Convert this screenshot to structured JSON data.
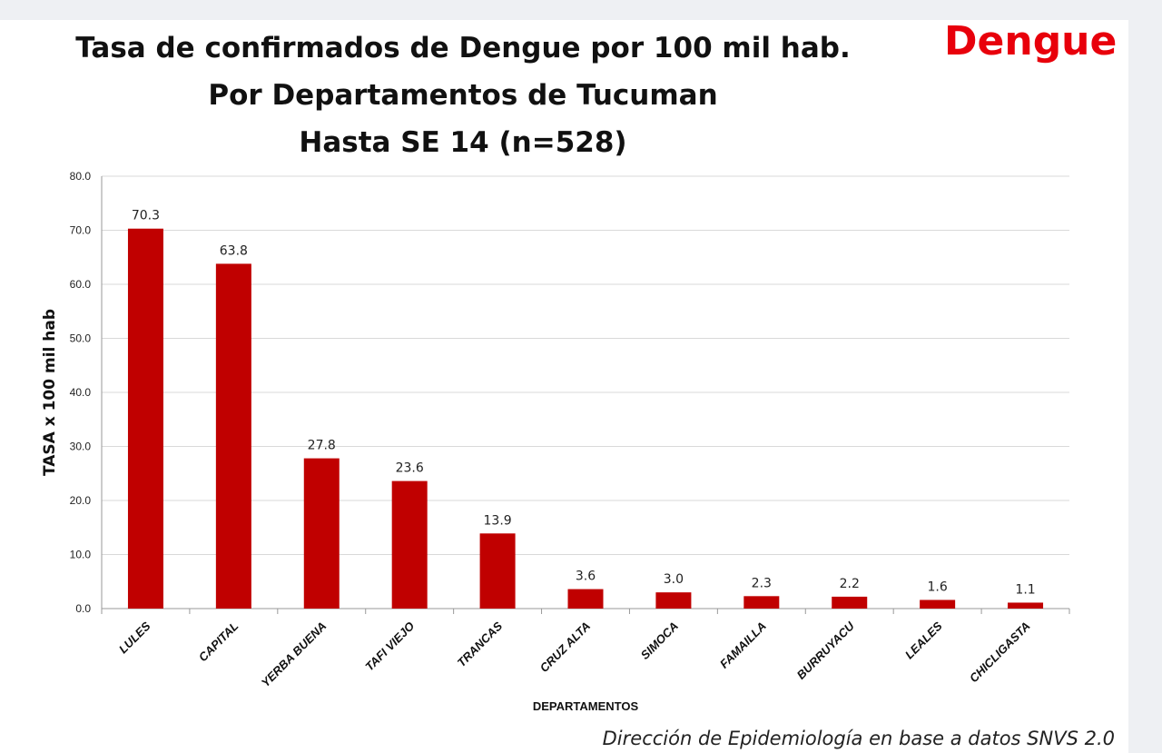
{
  "brand": "Dengue",
  "source": "Dirección de Epidemiología en base a datos SNVS 2.0",
  "chart_data": {
    "type": "bar",
    "title": [
      "Tasa de confirmados de Dengue por 100 mil hab.",
      "Por Departamentos de Tucuman",
      "Hasta SE 14  (n=528)"
    ],
    "xlabel": "DEPARTAMENTOS",
    "ylabel": "TASA x 100 mil hab",
    "ylim": [
      0,
      80
    ],
    "yticks": [
      "0.0",
      "10.0",
      "20.0",
      "30.0",
      "40.0",
      "50.0",
      "60.0",
      "70.0",
      "80.0"
    ],
    "grid": true,
    "bar_color": "#c00000",
    "categories": [
      "LULES",
      "CAPITAL",
      "YERBA BUENA",
      "TAFI VIEJO",
      "TRANCAS",
      "CRUZ ALTA",
      "SIMOCA",
      "FAMAILLA",
      "BURRUYACU",
      "LEALES",
      "CHICLIGASTA"
    ],
    "values": [
      70.3,
      63.8,
      27.8,
      23.6,
      13.9,
      3.6,
      3.0,
      2.3,
      2.2,
      1.6,
      1.1
    ],
    "data_labels": [
      "70.3",
      "63.8",
      "27.8",
      "23.6",
      "13.9",
      "3.6",
      "3.0",
      "2.3",
      "2.2",
      "1.6",
      "1.1"
    ]
  }
}
